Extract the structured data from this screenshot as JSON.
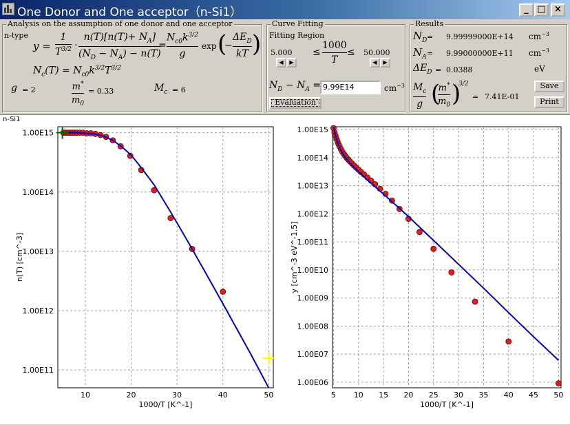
{
  "window": {
    "title": "One Donor and One acceptor（n-Si1）",
    "min_label": "_",
    "max_label": "□",
    "close_label": "×"
  },
  "analysis": {
    "title": "Analysis on the assumption of one donor and one acceptor",
    "type_label": "n-type",
    "g_label": "g",
    "g_value": "=  2",
    "m_value": "= 0.33",
    "mc_label": "M",
    "mc_value": "= 6"
  },
  "fitting": {
    "title": "Curve Fitting",
    "region_label": "Fitting Region",
    "low": "5.000",
    "high": "50.000",
    "x_label": "1000",
    "x_den": "T",
    "nd_na_value": "9.99E14",
    "unit": "cm",
    "unit_exp": "−3",
    "eval_label": "Evaluation"
  },
  "results": {
    "title": "Results",
    "nd_value": "9.99999000E+14",
    "na_value": "9.99000000E+11",
    "ed_value": "0.0388",
    "mcg_value": "7.41E-01",
    "unit_cm": "cm",
    "unit_exp": "−3",
    "unit_ev": "eV",
    "save_label": "Save",
    "print_label": "Print"
  },
  "panel": {
    "sample_label": "n-Si1"
  },
  "chart_data": [
    {
      "type": "scatter",
      "title": "",
      "xlabel": "1000/T  [K^-1]",
      "ylabel": "n(T)  [cm^-3]",
      "xlim": [
        4,
        51
      ],
      "ylim": [
        10.7,
        15.1
      ],
      "y_log": true,
      "grid": true,
      "x_ticks": [
        "10",
        "20",
        "30",
        "40",
        "50"
      ],
      "y_ticks": [
        "1.00E11",
        "1.00E12",
        "1.00E13",
        "1.00E14",
        "1.00E15"
      ],
      "points_x": [
        5.2,
        5.6,
        6.0,
        6.4,
        6.8,
        7.2,
        7.7,
        8.2,
        8.8,
        9.5,
        10.3,
        11.2,
        12.2,
        13.3,
        14.5,
        16.0,
        17.7,
        19.8,
        22.2,
        25.0,
        28.6,
        33.3,
        40.0
      ],
      "points_y": [
        15.0,
        15.0,
        15.0,
        15.0,
        15.0,
        15.0,
        15.0,
        15.0,
        15.0,
        15.0,
        14.99,
        14.99,
        14.98,
        14.96,
        14.93,
        14.87,
        14.77,
        14.61,
        14.37,
        14.03,
        13.56,
        13.04,
        12.32
      ],
      "fit_x": [
        5,
        8,
        10,
        12,
        14,
        16,
        18,
        20,
        22,
        25,
        28,
        30,
        33,
        36,
        40,
        43,
        46,
        48,
        50
      ],
      "fit_y": [
        15.0,
        15.0,
        14.99,
        14.98,
        14.94,
        14.87,
        14.76,
        14.62,
        14.43,
        14.12,
        13.74,
        13.48,
        13.08,
        12.67,
        12.12,
        11.7,
        11.28,
        10.99,
        10.7
      ],
      "markers": [
        {
          "label": "start-marker",
          "x": 5.0,
          "y": 15.0,
          "color": "#006400"
        },
        {
          "label": "end-marker",
          "x": 50.0,
          "y": 11.2,
          "color": "#ffff00"
        }
      ]
    },
    {
      "type": "scatter",
      "title": "",
      "xlabel": "1000/T  [K^-1]",
      "ylabel": "y  [cm^-3 eV^-1.5]",
      "xlim": [
        4.8,
        50.5
      ],
      "ylim": [
        5.8,
        15.1
      ],
      "y_log": true,
      "grid": true,
      "x_ticks": [
        "5",
        "10",
        "15",
        "20",
        "25",
        "30",
        "35",
        "40",
        "45",
        "50"
      ],
      "y_ticks": [
        "1.00E06",
        "1.00E07",
        "1.00E08",
        "1.00E09",
        "1.00E10",
        "1.00E11",
        "1.00E12",
        "1.00E13",
        "1.00E14",
        "1.00E15"
      ],
      "points_x": [
        5.0,
        5.2,
        5.4,
        5.6,
        5.8,
        6.0,
        6.2,
        6.5,
        6.8,
        7.1,
        7.4,
        7.7,
        8.0,
        8.3,
        8.7,
        9.1,
        9.5,
        10.0,
        10.5,
        11.1,
        11.8,
        12.5,
        13.3,
        14.3,
        15.4,
        16.7,
        18.2,
        20.0,
        22.2,
        25.0,
        28.6,
        33.3,
        40.0,
        50.0
      ],
      "points_y": [
        15.05,
        14.9,
        14.78,
        14.67,
        14.57,
        14.48,
        14.4,
        14.3,
        14.2,
        14.12,
        14.05,
        13.98,
        13.92,
        13.86,
        13.79,
        13.72,
        13.65,
        13.57,
        13.49,
        13.4,
        13.29,
        13.18,
        13.05,
        12.89,
        12.71,
        12.47,
        12.17,
        11.82,
        11.35,
        10.75,
        9.91,
        8.87,
        7.45,
        5.96
      ],
      "fit_x": [
        5.0,
        5.3,
        5.6,
        6.0,
        6.5,
        7.0,
        7.5,
        8.0,
        9.0,
        10.0,
        12.0,
        15.0,
        20.0,
        25.0,
        30.0,
        35.0,
        40.0,
        45.0,
        50.0
      ],
      "fit_y": [
        15.1,
        14.85,
        14.65,
        14.45,
        14.25,
        14.1,
        13.98,
        13.87,
        13.68,
        13.5,
        13.17,
        12.7,
        11.9,
        11.05,
        10.2,
        9.35,
        8.48,
        7.62,
        6.78
      ]
    }
  ]
}
